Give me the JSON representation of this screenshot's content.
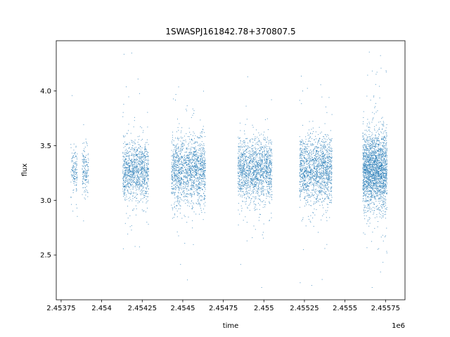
{
  "chart_data": {
    "type": "scatter",
    "title": "1SWASPJ161842.78+370807.5",
    "xlabel": "time",
    "ylabel": "flux",
    "x_offset_label": "1e6",
    "xlim": [
      2.45372,
      2.45587
    ],
    "ylim": [
      2.09,
      4.46
    ],
    "x_ticks": [
      {
        "value": 2.45375,
        "label": "2.45375"
      },
      {
        "value": 2.454,
        "label": "2.454"
      },
      {
        "value": 2.45425,
        "label": "2.45425"
      },
      {
        "value": 2.4545,
        "label": "2.4545"
      },
      {
        "value": 2.45475,
        "label": "2.45475"
      },
      {
        "value": 2.455,
        "label": "2.455"
      },
      {
        "value": 2.45525,
        "label": "2.45525"
      },
      {
        "value": 2.4555,
        "label": "2.4555"
      },
      {
        "value": 2.45575,
        "label": "2.45575"
      }
    ],
    "y_ticks": [
      {
        "value": 2.5,
        "label": "2.5"
      },
      {
        "value": 3.0,
        "label": "3.0"
      },
      {
        "value": 3.5,
        "label": "3.5"
      },
      {
        "value": 4.0,
        "label": "4.0"
      }
    ],
    "grid": false,
    "marker_color": "#1f77b4",
    "clusters": [
      {
        "x_start": 2.45381,
        "x_end": 2.45385,
        "center": 3.28,
        "spread": 0.09,
        "count": 140
      },
      {
        "x_start": 2.45388,
        "x_end": 2.45392,
        "center": 3.28,
        "spread": 0.1,
        "count": 160
      },
      {
        "x_start": 2.45413,
        "x_end": 2.45429,
        "center": 3.27,
        "spread": 0.13,
        "count": 1100
      },
      {
        "x_start": 2.45443,
        "x_end": 2.45464,
        "center": 3.27,
        "spread": 0.15,
        "count": 1500
      },
      {
        "x_start": 2.45484,
        "x_end": 2.45505,
        "center": 3.28,
        "spread": 0.14,
        "count": 1500
      },
      {
        "x_start": 2.45522,
        "x_end": 2.45542,
        "center": 3.28,
        "spread": 0.15,
        "count": 1500
      },
      {
        "x_start": 2.45561,
        "x_end": 2.45576,
        "center": 3.28,
        "spread": 0.17,
        "count": 2200
      }
    ]
  }
}
